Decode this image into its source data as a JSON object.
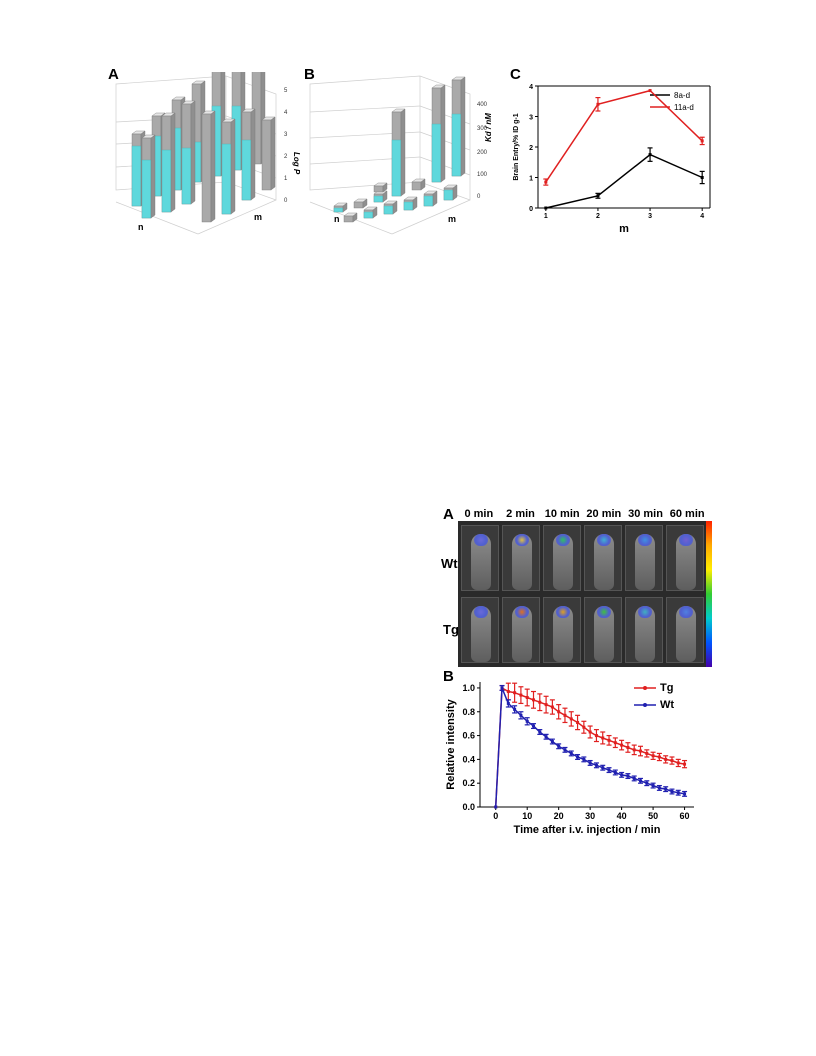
{
  "figure_top": {
    "labels": {
      "a": "A",
      "b": "B",
      "c": "C"
    },
    "panel_a": {
      "z_axis_label": "Log P",
      "z_ticks": [
        "0",
        "1",
        "2",
        "3",
        "4",
        "5"
      ],
      "x_axis_label": "n",
      "y_axis_label": "m",
      "colors": {
        "cyan": "#5fd8dc",
        "gray": "#a9a9a9"
      }
    },
    "panel_b": {
      "z_axis_label": "Kd / nM",
      "z_ticks": [
        "0",
        "100",
        "200",
        "300",
        "400"
      ],
      "x_axis_label": "n",
      "y_axis_label": "m"
    }
  },
  "figure_bottom": {
    "labels": {
      "a": "A",
      "b": "B"
    },
    "times": [
      "0 min",
      "2 min",
      "10 min",
      "20 min",
      "30 min",
      "60 min"
    ],
    "rows": [
      "Wt",
      "Tg"
    ],
    "head_colors": {
      "Wt": [
        "#6a6ad8",
        "#e0c040",
        "#30c060",
        "#40b0d0",
        "#4090e0",
        "#7060d0"
      ],
      "Tg": [
        "#6a6ad8",
        "#e07020",
        "#e0a020",
        "#40c040",
        "#40b0c0",
        "#5080e0"
      ]
    }
  },
  "chart_data": [
    {
      "type": "line",
      "title": "",
      "xlabel": "m",
      "ylabel": "Brain Entry/% ID g-1",
      "x": [
        1,
        2,
        3,
        4
      ],
      "xlim": [
        0.85,
        4.15
      ],
      "ylim": [
        0,
        4
      ],
      "xticks": [
        "1",
        "2",
        "3",
        "4"
      ],
      "yticks": [
        "0",
        "1",
        "2",
        "3",
        "4"
      ],
      "legend_position": "top-right",
      "series": [
        {
          "name": "8a-d",
          "color": "#000000",
          "values": [
            0.0,
            0.4,
            1.75,
            1.0
          ],
          "errors": [
            0.0,
            0.08,
            0.22,
            0.2
          ]
        },
        {
          "name": "11a-d",
          "color": "#e02020",
          "values": [
            0.85,
            3.4,
            3.85,
            2.2
          ],
          "errors": [
            0.1,
            0.22,
            0.0,
            0.12
          ]
        }
      ]
    },
    {
      "type": "line",
      "title": "",
      "xlabel": "Time after i.v. injection / min",
      "ylabel": "Relative intensity",
      "xlim": [
        -5,
        63
      ],
      "ylim": [
        0,
        1.05
      ],
      "xticks": [
        "0",
        "10",
        "20",
        "30",
        "40",
        "50",
        "60"
      ],
      "yticks": [
        "0.0",
        "0.2",
        "0.4",
        "0.6",
        "0.8",
        "1.0"
      ],
      "legend_position": "top-right",
      "series": [
        {
          "name": "Tg",
          "color": "#e02020",
          "x": [
            0,
            2,
            4,
            6,
            8,
            10,
            12,
            14,
            16,
            18,
            20,
            22,
            24,
            26,
            28,
            30,
            32,
            34,
            36,
            38,
            40,
            42,
            44,
            46,
            48,
            50,
            52,
            54,
            56,
            58,
            60
          ],
          "values": [
            0.0,
            1.0,
            0.97,
            0.96,
            0.94,
            0.92,
            0.9,
            0.88,
            0.86,
            0.84,
            0.8,
            0.77,
            0.74,
            0.71,
            0.67,
            0.63,
            0.6,
            0.58,
            0.56,
            0.54,
            0.52,
            0.5,
            0.48,
            0.47,
            0.45,
            0.43,
            0.42,
            0.4,
            0.39,
            0.37,
            0.36
          ],
          "errors": [
            0.0,
            0.02,
            0.07,
            0.08,
            0.07,
            0.07,
            0.07,
            0.07,
            0.07,
            0.06,
            0.06,
            0.06,
            0.06,
            0.06,
            0.05,
            0.05,
            0.05,
            0.05,
            0.04,
            0.04,
            0.04,
            0.04,
            0.04,
            0.04,
            0.03,
            0.03,
            0.03,
            0.03,
            0.03,
            0.03,
            0.03
          ]
        },
        {
          "name": "Wt",
          "color": "#2020b0",
          "x": [
            0,
            2,
            4,
            6,
            8,
            10,
            12,
            14,
            16,
            18,
            20,
            22,
            24,
            26,
            28,
            30,
            32,
            34,
            36,
            38,
            40,
            42,
            44,
            46,
            48,
            50,
            52,
            54,
            56,
            58,
            60
          ],
          "values": [
            0.0,
            1.0,
            0.87,
            0.82,
            0.77,
            0.72,
            0.68,
            0.63,
            0.59,
            0.55,
            0.51,
            0.48,
            0.45,
            0.42,
            0.4,
            0.37,
            0.35,
            0.33,
            0.31,
            0.29,
            0.27,
            0.26,
            0.24,
            0.22,
            0.2,
            0.18,
            0.16,
            0.15,
            0.13,
            0.12,
            0.11
          ],
          "errors": [
            0.0,
            0.02,
            0.03,
            0.03,
            0.03,
            0.03,
            0.02,
            0.02,
            0.02,
            0.02,
            0.02,
            0.02,
            0.02,
            0.02,
            0.02,
            0.02,
            0.02,
            0.02,
            0.02,
            0.02,
            0.02,
            0.02,
            0.02,
            0.02,
            0.02,
            0.02,
            0.02,
            0.02,
            0.02,
            0.02,
            0.02
          ]
        }
      ]
    }
  ]
}
